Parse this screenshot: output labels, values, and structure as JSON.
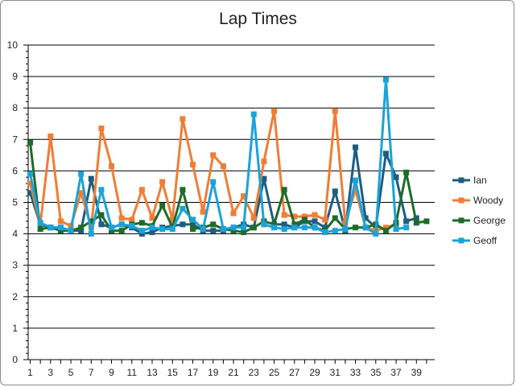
{
  "chart_data": {
    "type": "line",
    "title": "Lap Times",
    "xlabel": "",
    "ylabel": "",
    "ylim": [
      0,
      10
    ],
    "xlim": [
      1,
      40
    ],
    "yticks": [
      0,
      1,
      2,
      3,
      4,
      5,
      6,
      7,
      8,
      9,
      10
    ],
    "xtick_labels": [
      1,
      3,
      5,
      7,
      9,
      11,
      13,
      15,
      17,
      19,
      21,
      23,
      25,
      27,
      29,
      31,
      33,
      35,
      37,
      39
    ],
    "grid": "horizontal",
    "legend_position": "right",
    "series": [
      {
        "name": "Ian",
        "color": "#1f5c80",
        "x": [
          1,
          2,
          3,
          4,
          5,
          6,
          7,
          8,
          9,
          10,
          11,
          12,
          13,
          14,
          15,
          16,
          17,
          18,
          19,
          20,
          21,
          22,
          23,
          24,
          25,
          26,
          27,
          28,
          29,
          30,
          31,
          32,
          33,
          34,
          35,
          36,
          37,
          38,
          39
        ],
        "values": [
          5.3,
          4.3,
          4.2,
          4.2,
          4.1,
          4.1,
          5.75,
          4.3,
          4.2,
          4.3,
          4.2,
          4.0,
          4.05,
          4.2,
          4.25,
          4.3,
          4.3,
          4.1,
          4.1,
          4.1,
          4.2,
          4.3,
          4.2,
          5.75,
          4.3,
          4.3,
          4.2,
          4.4,
          4.4,
          4.2,
          5.35,
          4.1,
          6.75,
          4.5,
          4.2,
          6.55,
          5.8,
          4.4,
          4.5
        ]
      },
      {
        "name": "Woody",
        "color": "#f07d34",
        "x": [
          1,
          2,
          3,
          4,
          5,
          6,
          7,
          8,
          9,
          10,
          11,
          12,
          13,
          14,
          15,
          16,
          17,
          18,
          19,
          20,
          21,
          22,
          23,
          24,
          25,
          26,
          27,
          28,
          29,
          30,
          31,
          32,
          33,
          34,
          35,
          36,
          37
        ],
        "values": [
          5.6,
          4.3,
          7.1,
          4.4,
          4.25,
          5.3,
          4.2,
          7.35,
          6.15,
          4.5,
          4.45,
          5.4,
          4.5,
          5.65,
          4.45,
          7.65,
          6.2,
          4.7,
          6.5,
          6.15,
          4.65,
          5.2,
          4.5,
          6.3,
          7.9,
          4.6,
          4.55,
          4.55,
          4.6,
          4.45,
          7.9,
          4.35,
          5.4,
          4.2,
          4.1,
          4.2,
          4.3
        ]
      },
      {
        "name": "George",
        "color": "#1f6b2a",
        "x": [
          1,
          2,
          3,
          4,
          5,
          6,
          7,
          8,
          9,
          10,
          11,
          12,
          13,
          14,
          15,
          16,
          17,
          18,
          19,
          20,
          21,
          22,
          23,
          24,
          25,
          26,
          27,
          28,
          29,
          30,
          31,
          32,
          33,
          34,
          35,
          36,
          37,
          38,
          39,
          40
        ],
        "values": [
          6.9,
          4.15,
          4.2,
          4.1,
          4.1,
          4.2,
          4.4,
          4.6,
          4.1,
          4.1,
          4.3,
          4.35,
          4.25,
          4.9,
          4.2,
          5.4,
          4.15,
          4.2,
          4.3,
          4.15,
          4.1,
          4.05,
          4.2,
          4.4,
          4.3,
          5.4,
          4.3,
          4.45,
          4.2,
          4.1,
          4.5,
          4.15,
          4.2,
          4.2,
          4.3,
          4.1,
          4.35,
          5.95,
          4.35,
          4.4
        ]
      },
      {
        "name": "Geoff",
        "color": "#1aa3d9",
        "x": [
          1,
          2,
          3,
          4,
          5,
          6,
          7,
          8,
          9,
          10,
          11,
          12,
          13,
          14,
          15,
          16,
          17,
          18,
          19,
          20,
          21,
          22,
          23,
          24,
          25,
          26,
          27,
          28,
          29,
          30,
          31,
          32,
          33,
          34,
          35,
          36,
          37,
          38
        ],
        "values": [
          5.9,
          4.35,
          4.2,
          4.2,
          4.1,
          5.9,
          4.0,
          5.4,
          4.2,
          4.3,
          4.25,
          4.1,
          4.2,
          4.15,
          4.15,
          4.8,
          4.45,
          4.15,
          5.65,
          4.15,
          4.2,
          4.2,
          7.8,
          4.3,
          4.2,
          4.15,
          4.2,
          4.2,
          4.2,
          4.05,
          4.1,
          4.15,
          5.7,
          4.2,
          4.0,
          8.9,
          4.15,
          4.2
        ]
      }
    ]
  }
}
